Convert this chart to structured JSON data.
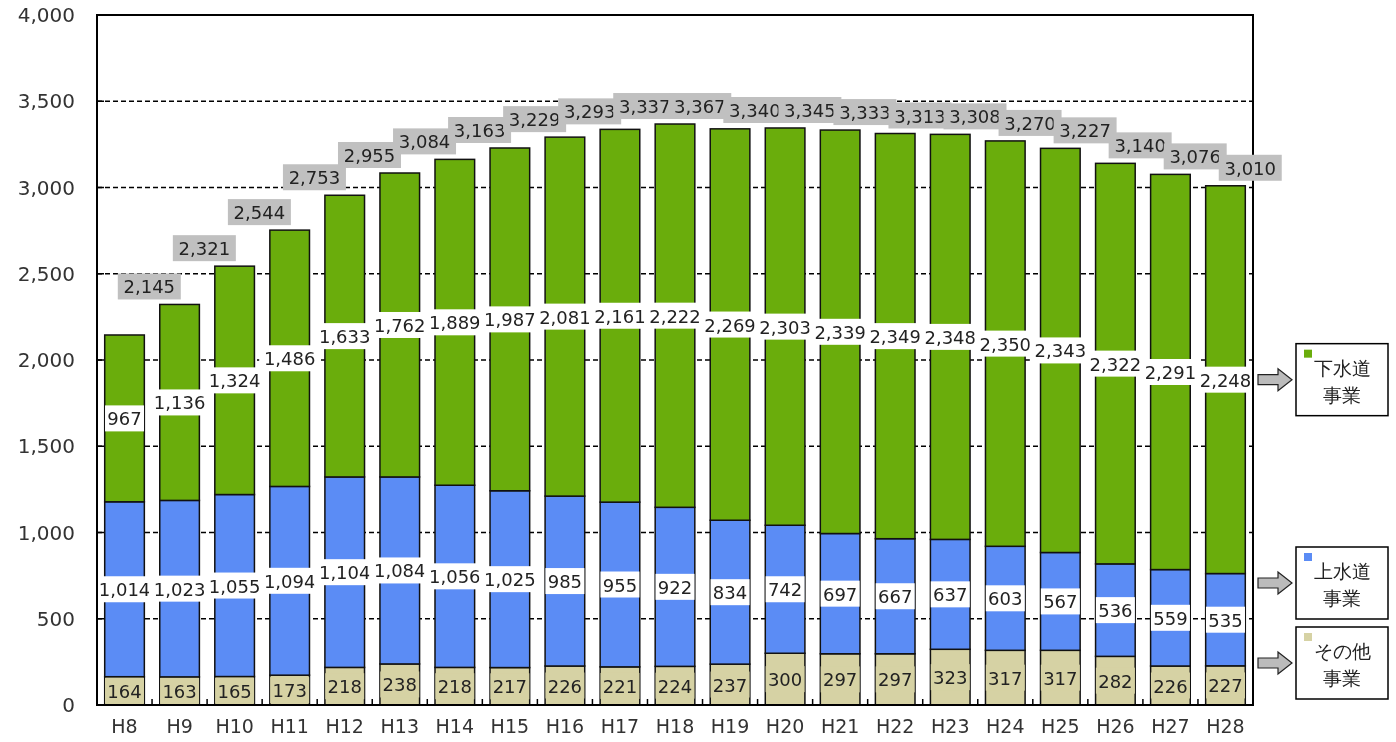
{
  "chart_data": {
    "type": "bar",
    "stacked": true,
    "categories": [
      "H8",
      "H9",
      "H10",
      "H11",
      "H12",
      "H13",
      "H14",
      "H15",
      "H16",
      "H17",
      "H18",
      "H19",
      "H20",
      "H21",
      "H22",
      "H23",
      "H24",
      "H25",
      "H26",
      "H27",
      "H28"
    ],
    "series": [
      {
        "name": "その他事業",
        "color": "#d6d2a4",
        "values": [
          164,
          163,
          165,
          173,
          218,
          238,
          218,
          217,
          226,
          221,
          224,
          237,
          300,
          297,
          297,
          323,
          317,
          317,
          282,
          226,
          227
        ],
        "value_labels": [
          "164",
          "163",
          "165",
          "173",
          "218",
          "238",
          "218",
          "217",
          "226",
          "221",
          "224",
          "237",
          "300",
          "297",
          "297",
          "323",
          "317",
          "317",
          "282",
          "226",
          "227"
        ]
      },
      {
        "name": "上水道事業",
        "color": "#5b8cf5",
        "values": [
          1014,
          1023,
          1055,
          1094,
          1104,
          1084,
          1056,
          1025,
          985,
          955,
          922,
          834,
          742,
          697,
          667,
          637,
          603,
          567,
          536,
          559,
          535
        ],
        "value_labels": [
          "1,014",
          "1,023",
          "1,055",
          "1,094",
          "1,104",
          "1,084",
          "1,056",
          "1,025",
          "985",
          "955",
          "922",
          "834",
          "742",
          "697",
          "667",
          "637",
          "603",
          "567",
          "536",
          "559",
          "535"
        ]
      },
      {
        "name": "下水道事業",
        "color": "#6aad0c",
        "values": [
          967,
          1136,
          1324,
          1486,
          1633,
          1762,
          1889,
          1987,
          2081,
          2161,
          2222,
          2269,
          2303,
          2339,
          2349,
          2348,
          2350,
          2343,
          2322,
          2291,
          2248
        ],
        "value_labels": [
          "967",
          "1,136",
          "1,324",
          "1,486",
          "1,633",
          "1,762",
          "1,889",
          "1,987",
          "2,081",
          "2,161",
          "2,222",
          "2,269",
          "2,303",
          "2,339",
          "2,349",
          "2,348",
          "2,350",
          "2,343",
          "2,322",
          "2,291",
          "2,248"
        ]
      }
    ],
    "totals": [
      "2,145",
      "2,321",
      "2,544",
      "2,753",
      "2,955",
      "3,084",
      "3,163",
      "3,229",
      "3,293",
      "3,337",
      "3,367",
      "3,340",
      "3,345",
      "3,333",
      "3,313",
      "3,308",
      "3,270",
      "3,227",
      "3,140",
      "3,076",
      "3,010"
    ],
    "ylim": [
      0,
      4000
    ],
    "yticks": [
      0,
      500,
      {
        "value": 1000,
        "label": "1,000"
      },
      {
        "value": 1500,
        "label": "1,500"
      },
      {
        "value": 2000,
        "label": "2,000"
      },
      {
        "value": 2500,
        "label": "2,500"
      },
      {
        "value": 3000,
        "label": "3,000"
      },
      {
        "value": 3500,
        "label": "3,500"
      },
      {
        "value": 4000,
        "label": "4,000"
      }
    ],
    "grid": "y",
    "legend": "right"
  }
}
